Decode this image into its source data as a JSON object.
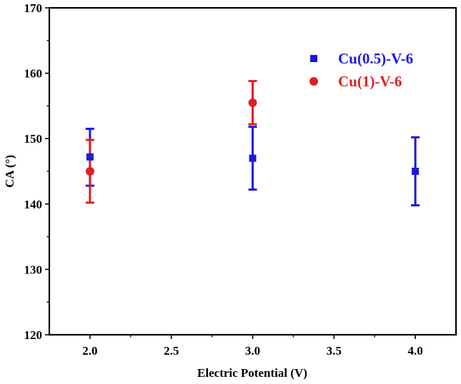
{
  "chart_data": {
    "type": "scatter",
    "title": "",
    "xlabel": "Electric Potential (V)",
    "ylabel": "CA (°)",
    "xlim": [
      1.75,
      4.25
    ],
    "ylim": [
      120,
      170
    ],
    "xticks": [
      "2.0",
      "2.5",
      "3.0",
      "3.5",
      "4.0"
    ],
    "yticks": [
      "120",
      "130",
      "140",
      "150",
      "160",
      "170"
    ],
    "legend_position": "top-right",
    "grid": false,
    "series": [
      {
        "name": "Cu(0.5)-V-6",
        "marker": "square",
        "color": "#1a1adc",
        "points": [
          {
            "x": 2.0,
            "y": 147.2,
            "err_low": 142.8,
            "err_high": 151.5
          },
          {
            "x": 3.0,
            "y": 147.0,
            "err_low": 142.2,
            "err_high": 151.8
          },
          {
            "x": 4.0,
            "y": 145.0,
            "err_low": 139.8,
            "err_high": 150.2
          }
        ]
      },
      {
        "name": "Cu(1)-V-6",
        "marker": "circle",
        "color": "#e02020",
        "points": [
          {
            "x": 2.0,
            "y": 145.0,
            "err_low": 140.2,
            "err_high": 149.8
          },
          {
            "x": 3.0,
            "y": 155.5,
            "err_low": 152.2,
            "err_high": 158.8
          }
        ]
      }
    ]
  }
}
